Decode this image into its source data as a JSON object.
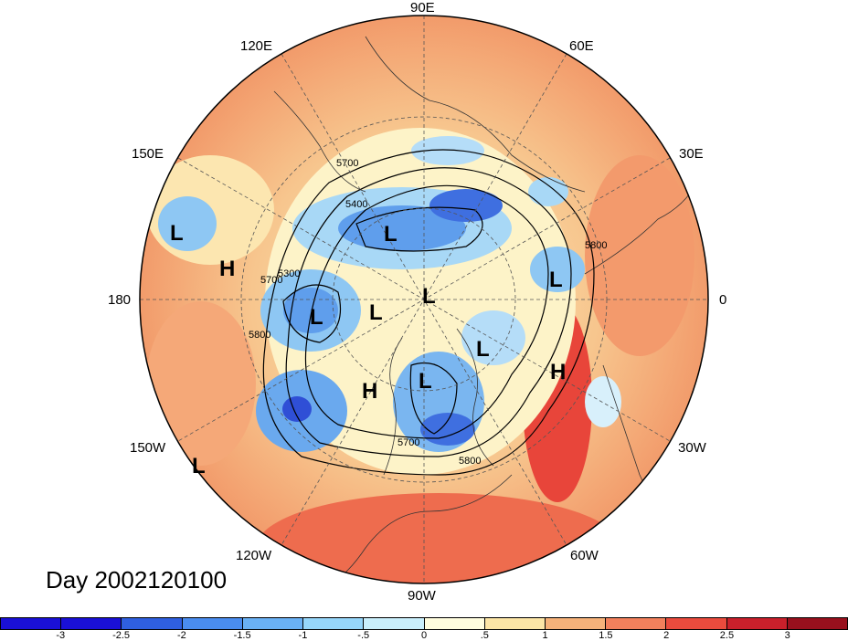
{
  "title": "Day 2002120100",
  "longitude_labels": [
    "90E",
    "60E",
    "30E",
    "0",
    "30W",
    "60W",
    "90W",
    "120W",
    "150W",
    "180",
    "150E",
    "120E"
  ],
  "pressure_systems": [
    "L",
    "H",
    "L",
    "L",
    "L",
    "L",
    "L",
    "L",
    "H",
    "H",
    "L",
    "L"
  ],
  "contour_labels": [
    "5700",
    "5400",
    "5300",
    "5700",
    "5800",
    "5800",
    "5700",
    "5800"
  ],
  "colorbar": {
    "colors": [
      "#1a10d6",
      "#2f5fe0",
      "#4a8df0",
      "#6ab1f5",
      "#96d6fa",
      "#c9effc",
      "#fffdde",
      "#fce5a6",
      "#f6b27a",
      "#f2805c",
      "#ea4b3d",
      "#c9202b",
      "#98101d"
    ],
    "tick_labels": [
      "-3",
      "-2.5",
      "-2",
      "-1.5",
      "-1",
      "-.5",
      "0",
      ".5",
      "1",
      "1.5",
      "2",
      "2.5",
      "3"
    ]
  }
}
